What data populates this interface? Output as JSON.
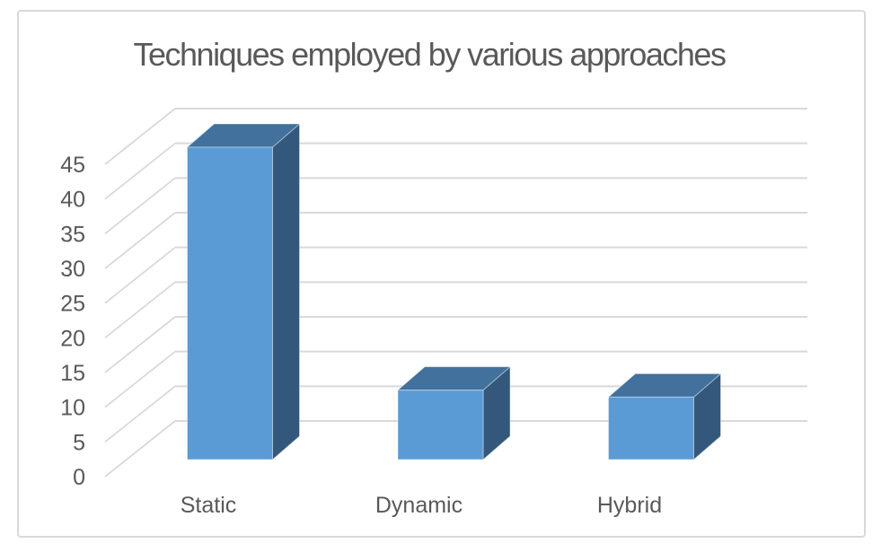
{
  "chart_data": {
    "type": "bar",
    "projection": "3d",
    "title": "Techniques employed by various approaches",
    "categories": [
      "Static",
      "Dynamic",
      "Hybrid"
    ],
    "values": [
      45,
      10,
      9
    ],
    "series_count": 1,
    "xlabel": "",
    "ylabel": "",
    "ylim": [
      0,
      45
    ],
    "ytick_step": 5,
    "ytick_labels": [
      "0",
      "5",
      "10",
      "15",
      "20",
      "25",
      "30",
      "35",
      "40",
      "45"
    ],
    "grid": true,
    "legend": false,
    "colors": {
      "bar_front": "#5B9BD5",
      "bar_top": "#41719C",
      "bar_side": "#34587C",
      "gridline": "#D9D9D9",
      "frame_border": "#D9D9D9",
      "text": "#595959",
      "background": "#FFFFFF"
    }
  }
}
